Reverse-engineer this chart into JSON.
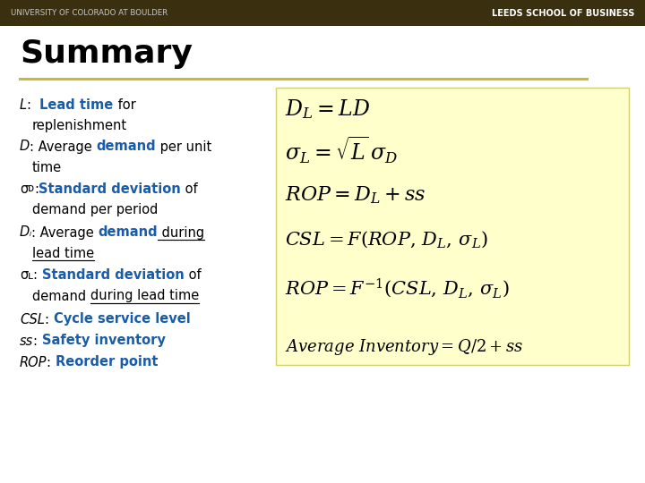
{
  "bg_color": "#ffffff",
  "header_bg": "#3a3010",
  "header_text_left": "UNIVERSITY OF COLORADO AT BOULDER",
  "header_text_right": "LEEDS SCHOOL OF BUSINESS",
  "title": "Summary",
  "sep_color": "#c8b840",
  "yellow_box_color": "#ffffcc",
  "blue_color": "#1a5ca8",
  "eq1": "$D_L = LD$",
  "eq2": "$\\sigma_L = \\sqrt{L}\\,\\sigma_D$",
  "eq3": "$ROP = D_L + ss$",
  "eq4": "$CSL = F(ROP,\\,D_L,\\,\\sigma_L)$",
  "eq5": "$ROP = F^{-1}(CSL,\\,D_L,\\,\\sigma_L)$",
  "eq_bottom": "$Average\\ Inventory = Q/2 + ss$"
}
